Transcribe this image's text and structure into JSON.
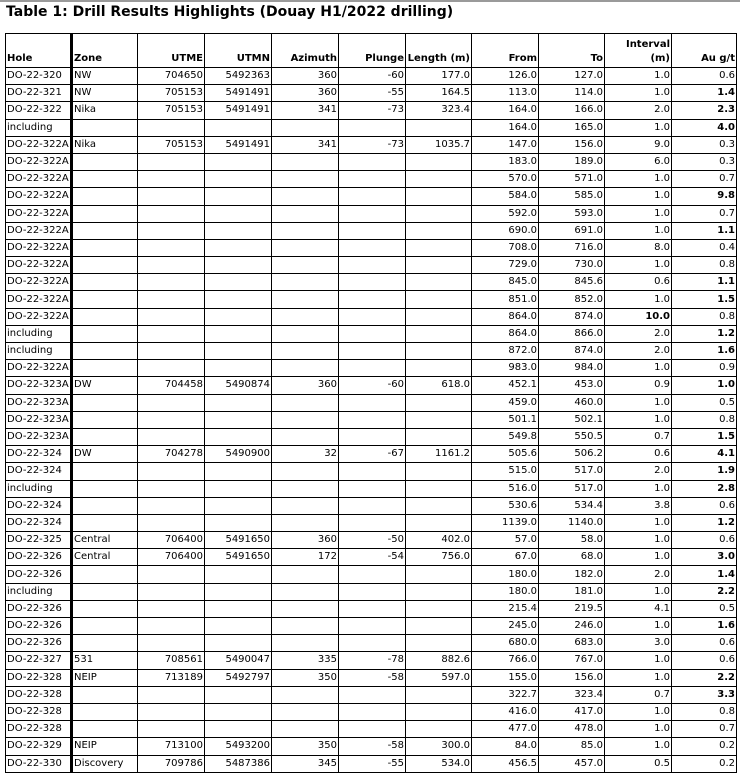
{
  "title": "Table 1: Drill Results Highlights (Douay H1/2022 drilling)",
  "headers": [
    "Hole",
    "Zone",
    "UTME",
    "UTMN",
    "Azimuth",
    "Plunge",
    "Length (m)",
    "From",
    "To",
    "Interval (m)",
    "Au g/t"
  ],
  "rows": [
    {
      "cells": [
        "DO-22-320",
        "NW",
        "704650",
        "5492363",
        "360",
        "-60",
        "177.0",
        "126.0",
        "127.0",
        "1.0",
        "0.6"
      ]
    },
    {
      "cells": [
        "DO-22-321",
        "NW",
        "705153",
        "5491491",
        "360",
        "-55",
        "164.5",
        "113.0",
        "114.0",
        "1.0",
        "1.4"
      ],
      "bold": [
        10
      ]
    },
    {
      "cells": [
        "DO-22-322",
        "Nika",
        "705153",
        "5491491",
        "341",
        "-73",
        "323.4",
        "164.0",
        "166.0",
        "2.0",
        "2.3"
      ],
      "bold": [
        10
      ]
    },
    {
      "cells": [
        "including",
        "",
        "",
        "",
        "",
        "",
        "",
        "164.0",
        "165.0",
        "1.0",
        "4.0"
      ],
      "bold": [
        10
      ]
    },
    {
      "cells": [
        "DO-22-322A",
        "Nika",
        "705153",
        "5491491",
        "341",
        "-73",
        "1035.7",
        "147.0",
        "156.0",
        "9.0",
        "0.3"
      ]
    },
    {
      "cells": [
        "DO-22-322A",
        "",
        "",
        "",
        "",
        "",
        "",
        "183.0",
        "189.0",
        "6.0",
        "0.3"
      ]
    },
    {
      "cells": [
        "DO-22-322A",
        "",
        "",
        "",
        "",
        "",
        "",
        "570.0",
        "571.0",
        "1.0",
        "0.7"
      ]
    },
    {
      "cells": [
        "DO-22-322A",
        "",
        "",
        "",
        "",
        "",
        "",
        "584.0",
        "585.0",
        "1.0",
        "9.8"
      ],
      "bold": [
        10
      ]
    },
    {
      "cells": [
        "DO-22-322A",
        "",
        "",
        "",
        "",
        "",
        "",
        "592.0",
        "593.0",
        "1.0",
        "0.7"
      ]
    },
    {
      "cells": [
        "DO-22-322A",
        "",
        "",
        "",
        "",
        "",
        "",
        "690.0",
        "691.0",
        "1.0",
        "1.1"
      ],
      "bold": [
        10
      ]
    },
    {
      "cells": [
        "DO-22-322A",
        "",
        "",
        "",
        "",
        "",
        "",
        "708.0",
        "716.0",
        "8.0",
        "0.4"
      ]
    },
    {
      "cells": [
        "DO-22-322A",
        "",
        "",
        "",
        "",
        "",
        "",
        "729.0",
        "730.0",
        "1.0",
        "0.8"
      ]
    },
    {
      "cells": [
        "DO-22-322A",
        "",
        "",
        "",
        "",
        "",
        "",
        "845.0",
        "845.6",
        "0.6",
        "1.1"
      ],
      "bold": [
        10
      ]
    },
    {
      "cells": [
        "DO-22-322A",
        "",
        "",
        "",
        "",
        "",
        "",
        "851.0",
        "852.0",
        "1.0",
        "1.5"
      ],
      "bold": [
        10
      ]
    },
    {
      "cells": [
        "DO-22-322A",
        "",
        "",
        "",
        "",
        "",
        "",
        "864.0",
        "874.0",
        "10.0",
        "0.8"
      ],
      "bold": [
        9
      ]
    },
    {
      "cells": [
        "including",
        "",
        "",
        "",
        "",
        "",
        "",
        "864.0",
        "866.0",
        "2.0",
        "1.2"
      ],
      "bold": [
        10
      ]
    },
    {
      "cells": [
        "including",
        "",
        "",
        "",
        "",
        "",
        "",
        "872.0",
        "874.0",
        "2.0",
        "1.6"
      ],
      "bold": [
        10
      ]
    },
    {
      "cells": [
        "DO-22-322A",
        "",
        "",
        "",
        "",
        "",
        "",
        "983.0",
        "984.0",
        "1.0",
        "0.9"
      ]
    },
    {
      "cells": [
        "DO-22-323A",
        "DW",
        "704458",
        "5490874",
        "360",
        "-60",
        "618.0",
        "452.1",
        "453.0",
        "0.9",
        "1.0"
      ],
      "bold": [
        10
      ]
    },
    {
      "cells": [
        "DO-22-323A",
        "",
        "",
        "",
        "",
        "",
        "",
        "459.0",
        "460.0",
        "1.0",
        "0.5"
      ]
    },
    {
      "cells": [
        "DO-22-323A",
        "",
        "",
        "",
        "",
        "",
        "",
        "501.1",
        "502.1",
        "1.0",
        "0.8"
      ]
    },
    {
      "cells": [
        "DO-22-323A",
        "",
        "",
        "",
        "",
        "",
        "",
        "549.8",
        "550.5",
        "0.7",
        "1.5"
      ],
      "bold": [
        10
      ]
    },
    {
      "cells": [
        "DO-22-324",
        "DW",
        "704278",
        "5490900",
        "32",
        "-67",
        "1161.2",
        "505.6",
        "506.2",
        "0.6",
        "4.1"
      ],
      "bold": [
        10
      ]
    },
    {
      "cells": [
        "DO-22-324",
        "",
        "",
        "",
        "",
        "",
        "",
        "515.0",
        "517.0",
        "2.0",
        "1.9"
      ],
      "bold": [
        10
      ]
    },
    {
      "cells": [
        "including",
        "",
        "",
        "",
        "",
        "",
        "",
        "516.0",
        "517.0",
        "1.0",
        "2.8"
      ],
      "bold": [
        10
      ]
    },
    {
      "cells": [
        "DO-22-324",
        "",
        "",
        "",
        "",
        "",
        "",
        "530.6",
        "534.4",
        "3.8",
        "0.6"
      ]
    },
    {
      "cells": [
        "DO-22-324",
        "",
        "",
        "",
        "",
        "",
        "",
        "1139.0",
        "1140.0",
        "1.0",
        "1.2"
      ],
      "bold": [
        10
      ]
    },
    {
      "cells": [
        "DO-22-325",
        "Central",
        "706400",
        "5491650",
        "360",
        "-50",
        "402.0",
        "57.0",
        "58.0",
        "1.0",
        "0.6"
      ]
    },
    {
      "cells": [
        "DO-22-326",
        "Central",
        "706400",
        "5491650",
        "172",
        "-54",
        "756.0",
        "67.0",
        "68.0",
        "1.0",
        "3.0"
      ],
      "bold": [
        10
      ]
    },
    {
      "cells": [
        "DO-22-326",
        "",
        "",
        "",
        "",
        "",
        "",
        "180.0",
        "182.0",
        "2.0",
        "1.4"
      ],
      "bold": [
        10
      ]
    },
    {
      "cells": [
        "including",
        "",
        "",
        "",
        "",
        "",
        "",
        "180.0",
        "181.0",
        "1.0",
        "2.2"
      ],
      "bold": [
        10
      ]
    },
    {
      "cells": [
        "DO-22-326",
        "",
        "",
        "",
        "",
        "",
        "",
        "215.4",
        "219.5",
        "4.1",
        "0.5"
      ]
    },
    {
      "cells": [
        "DO-22-326",
        "",
        "",
        "",
        "",
        "",
        "",
        "245.0",
        "246.0",
        "1.0",
        "1.6"
      ],
      "bold": [
        10
      ]
    },
    {
      "cells": [
        "DO-22-326",
        "",
        "",
        "",
        "",
        "",
        "",
        "680.0",
        "683.0",
        "3.0",
        "0.6"
      ]
    },
    {
      "cells": [
        "DO-22-327",
        "531",
        "708561",
        "5490047",
        "335",
        "-78",
        "882.6",
        "766.0",
        "767.0",
        "1.0",
        "0.6"
      ]
    },
    {
      "cells": [
        "DO-22-328",
        "NEIP",
        "713189",
        "5492797",
        "350",
        "-58",
        "597.0",
        "155.0",
        "156.0",
        "1.0",
        "2.2"
      ],
      "bold": [
        10
      ]
    },
    {
      "cells": [
        "DO-22-328",
        "",
        "",
        "",
        "",
        "",
        "",
        "322.7",
        "323.4",
        "0.7",
        "3.3"
      ],
      "bold": [
        10
      ]
    },
    {
      "cells": [
        "DO-22-328",
        "",
        "",
        "",
        "",
        "",
        "",
        "416.0",
        "417.0",
        "1.0",
        "0.8"
      ]
    },
    {
      "cells": [
        "DO-22-328",
        "",
        "",
        "",
        "",
        "",
        "",
        "477.0",
        "478.0",
        "1.0",
        "0.7"
      ]
    },
    {
      "cells": [
        "DO-22-329",
        "NEIP",
        "713100",
        "5493200",
        "350",
        "-58",
        "300.0",
        "84.0",
        "85.0",
        "1.0",
        "0.2"
      ]
    },
    {
      "cells": [
        "DO-22-330",
        "Discovery",
        "709786",
        "5487386",
        "345",
        "-55",
        "534.0",
        "456.5",
        "457.0",
        "0.5",
        "0.2"
      ]
    }
  ]
}
